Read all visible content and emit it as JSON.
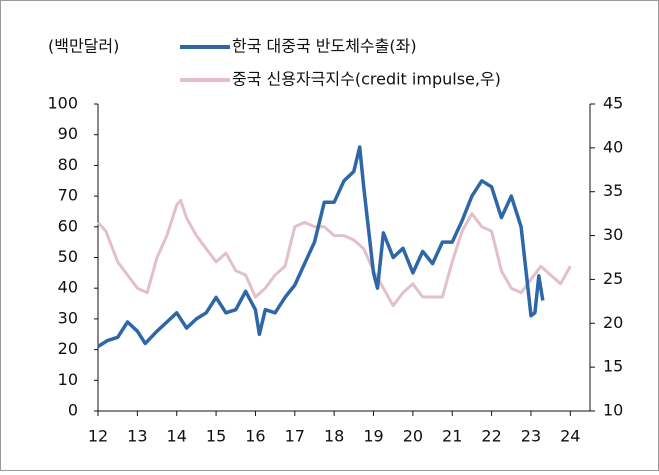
{
  "chart_data": {
    "type": "line",
    "y_unit_label": "(백만달러)",
    "xlim": [
      12,
      24.5
    ],
    "xticks": [
      12,
      13,
      14,
      15,
      16,
      17,
      18,
      19,
      20,
      21,
      22,
      23,
      24
    ],
    "ylim": [
      0,
      100
    ],
    "yticks": [
      0,
      10,
      20,
      30,
      40,
      50,
      60,
      70,
      80,
      90,
      100
    ],
    "y2lim": [
      10,
      45
    ],
    "y2ticks": [
      10,
      15,
      20,
      25,
      30,
      35,
      40,
      45
    ],
    "series": [
      {
        "name": "한국 대중국 반도체수출(좌)",
        "color": "#2e67a8",
        "x": [
          12.0,
          12.25,
          12.5,
          12.75,
          13.0,
          13.2,
          13.5,
          13.75,
          14.0,
          14.25,
          14.5,
          14.75,
          15.0,
          15.25,
          15.5,
          15.75,
          16.0,
          16.1,
          16.25,
          16.5,
          16.75,
          17.0,
          17.25,
          17.5,
          17.75,
          18.0,
          18.25,
          18.5,
          18.65,
          18.75,
          19.0,
          19.1,
          19.25,
          19.5,
          19.75,
          20.0,
          20.25,
          20.5,
          20.75,
          21.0,
          21.25,
          21.5,
          21.75,
          22.0,
          22.25,
          22.5,
          22.75,
          23.0,
          23.1,
          23.2,
          23.3
        ],
        "values": [
          21,
          23,
          24,
          29,
          26,
          22,
          26,
          29,
          32,
          27,
          30,
          32,
          37,
          32,
          33,
          39,
          33,
          25,
          33,
          32,
          37,
          41,
          48,
          55,
          68,
          68,
          75,
          78,
          86,
          73,
          45,
          40,
          58,
          50,
          53,
          45,
          52,
          48,
          55,
          55,
          62,
          70,
          75,
          73,
          63,
          70,
          60,
          31,
          32,
          44,
          36
        ]
      },
      {
        "name": "중국 신용자극지수(credit impulse,우)",
        "color": "#e3bfcc",
        "axis": "y2",
        "x": [
          12.0,
          12.2,
          12.5,
          12.75,
          13.0,
          13.25,
          13.5,
          13.75,
          14.0,
          14.1,
          14.25,
          14.5,
          14.75,
          15.0,
          15.25,
          15.5,
          15.75,
          16.0,
          16.25,
          16.5,
          16.75,
          17.0,
          17.25,
          17.5,
          17.75,
          18.0,
          18.25,
          18.5,
          18.75,
          19.0,
          19.25,
          19.5,
          19.75,
          20.0,
          20.25,
          20.5,
          20.75,
          21.0,
          21.25,
          21.5,
          21.75,
          22.0,
          22.25,
          22.5,
          22.75,
          23.0,
          23.25,
          23.5,
          23.75,
          24.0
        ],
        "values": [
          31.5,
          30.5,
          27,
          25.5,
          24,
          23.5,
          27.5,
          30,
          33.5,
          34,
          32,
          30,
          28.5,
          27,
          28,
          26,
          25.5,
          23,
          24,
          25.5,
          26.5,
          31,
          31.5,
          31,
          31,
          30,
          30,
          29.5,
          28.5,
          26,
          24,
          22,
          23.5,
          24.5,
          23,
          23,
          23,
          27,
          30.5,
          32.5,
          31,
          30.5,
          26,
          24,
          23.5,
          25,
          26.5,
          25.5,
          24.5,
          26.5
        ]
      }
    ]
  }
}
